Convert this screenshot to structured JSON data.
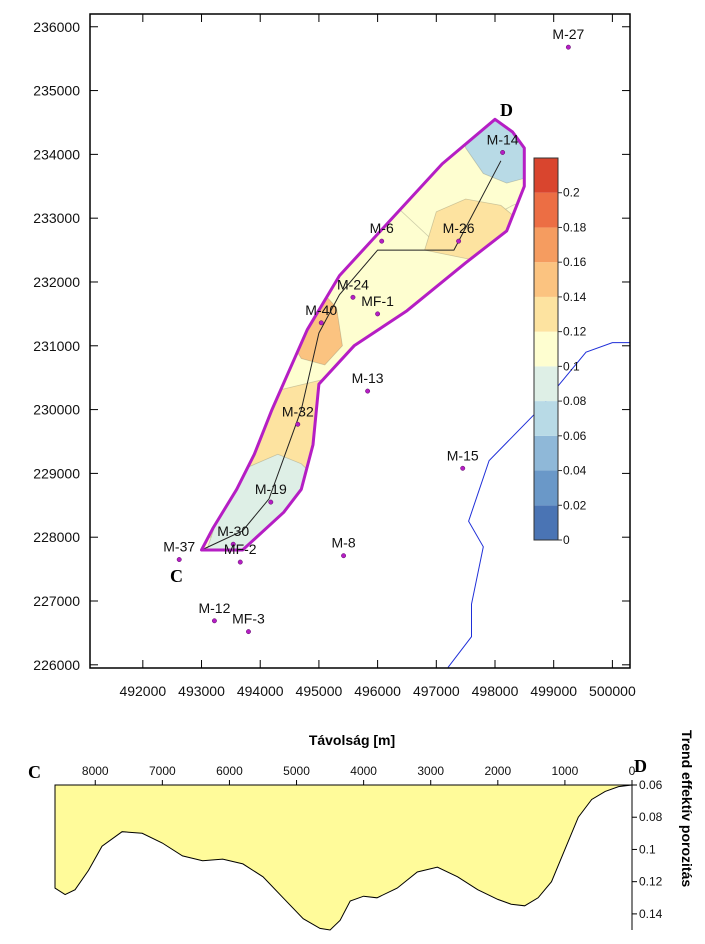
{
  "chart_data": [
    {
      "type": "contour-map",
      "x_ticks": [
        492000,
        493000,
        494000,
        495000,
        496000,
        497000,
        498000,
        499000,
        500000
      ],
      "y_ticks": [
        226000,
        227000,
        228000,
        229000,
        230000,
        231000,
        232000,
        233000,
        234000,
        235000,
        236000
      ],
      "xlim": [
        491100,
        500300
      ],
      "ylim": [
        225950,
        236200
      ],
      "colorbar": {
        "ticks": [
          "0",
          "0.02",
          "0.04",
          "0.06",
          "0.08",
          "0.1",
          "0.12",
          "0.14",
          "0.16",
          "0.18",
          "0.2"
        ],
        "colors": [
          "#4a74b4",
          "#6a98c8",
          "#8fb8d8",
          "#b8dae6",
          "#deefe6",
          "#fefed0",
          "#fde3a0",
          "#fbc380",
          "#f59c60",
          "#ec6e44",
          "#d9452e"
        ]
      },
      "wells": [
        {
          "name": "M-27",
          "x": 499250,
          "y": 235680
        },
        {
          "name": "M-14",
          "x": 498130,
          "y": 234030
        },
        {
          "name": "M-6",
          "x": 496070,
          "y": 232640
        },
        {
          "name": "M-26",
          "x": 497380,
          "y": 232640
        },
        {
          "name": "M-24",
          "x": 495580,
          "y": 231760
        },
        {
          "name": "MF-1",
          "x": 496000,
          "y": 231500
        },
        {
          "name": "M-40",
          "x": 495040,
          "y": 231360
        },
        {
          "name": "M-13",
          "x": 495830,
          "y": 230290
        },
        {
          "name": "M-32",
          "x": 494640,
          "y": 229770
        },
        {
          "name": "M-15",
          "x": 497450,
          "y": 229080
        },
        {
          "name": "M-19",
          "x": 494180,
          "y": 228550
        },
        {
          "name": "M-30",
          "x": 493540,
          "y": 227890
        },
        {
          "name": "MF-2",
          "x": 493660,
          "y": 227610
        },
        {
          "name": "M-37",
          "x": 492620,
          "y": 227650
        },
        {
          "name": "M-8",
          "x": 495420,
          "y": 227710
        },
        {
          "name": "M-12",
          "x": 493220,
          "y": 226690
        },
        {
          "name": "MF-3",
          "x": 493800,
          "y": 226520
        }
      ],
      "section_labels": {
        "start": "C",
        "end": "D"
      },
      "x_axis_label": "Távolság [m]"
    },
    {
      "type": "area",
      "xlim": [
        8600,
        0
      ],
      "ylim": [
        0.06,
        0.15
      ],
      "y_inverted": true,
      "x_ticks": [
        8000,
        7000,
        6000,
        5000,
        4000,
        3000,
        2000,
        1000,
        0
      ],
      "y_ticks": [
        "0.06",
        "0.08",
        "0.1",
        "0.12",
        "0.14"
      ],
      "ylabel": "Trend effektív porozitás",
      "section_labels": {
        "start": "C",
        "end": "D"
      },
      "x": [
        8600,
        8450,
        8300,
        8100,
        7900,
        7600,
        7300,
        7000,
        6700,
        6400,
        6100,
        5800,
        5500,
        5200,
        4900,
        4650,
        4500,
        4350,
        4200,
        4000,
        3800,
        3500,
        3200,
        2900,
        2600,
        2300,
        2000,
        1800,
        1600,
        1400,
        1200,
        1000,
        800,
        600,
        400,
        200,
        0
      ],
      "values": [
        0.124,
        0.128,
        0.125,
        0.113,
        0.098,
        0.089,
        0.09,
        0.096,
        0.104,
        0.107,
        0.106,
        0.109,
        0.117,
        0.13,
        0.143,
        0.149,
        0.15,
        0.144,
        0.132,
        0.129,
        0.13,
        0.124,
        0.114,
        0.111,
        0.117,
        0.125,
        0.131,
        0.134,
        0.135,
        0.13,
        0.12,
        0.1,
        0.08,
        0.069,
        0.064,
        0.061,
        0.06
      ]
    }
  ]
}
